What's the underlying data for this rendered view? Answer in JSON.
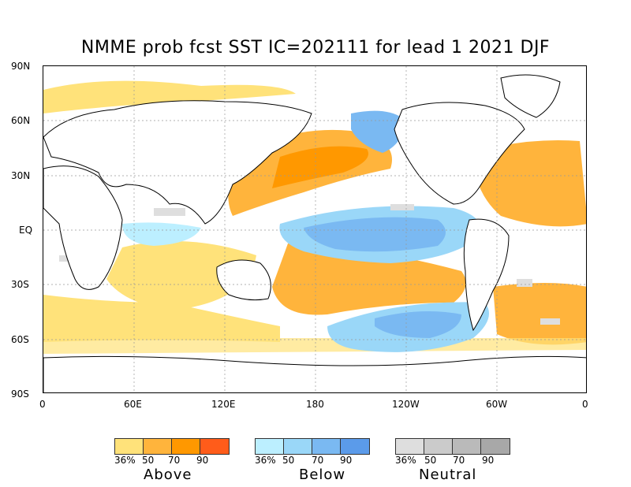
{
  "title": "NMME prob fcst SST IC=202111 for lead 1 2021 DJF",
  "lat_labels": [
    "90N",
    "60N",
    "30N",
    "EQ",
    "30S",
    "60S",
    "90S"
  ],
  "lon_labels": [
    "0",
    "60E",
    "120E",
    "180",
    "120W",
    "60W",
    "0"
  ],
  "legend": [
    {
      "name": "Above",
      "ticks": [
        "36%",
        "50",
        "70",
        "90"
      ],
      "colors": [
        "#ffe27a",
        "#ffb43c",
        "#ff9800",
        "#ff5c1a"
      ]
    },
    {
      "name": "Below",
      "ticks": [
        "36%",
        "50",
        "70",
        "90"
      ],
      "colors": [
        "#bcefff",
        "#9ad7f8",
        "#7ab9f2",
        "#5b9bea"
      ]
    },
    {
      "name": "Neutral",
      "ticks": [
        "36%",
        "50",
        "70",
        "90"
      ],
      "colors": [
        "#dedede",
        "#cbcbcb",
        "#bababa",
        "#a8a8a8"
      ]
    }
  ],
  "colors": {
    "ocean_background": "#ffffff",
    "land": "#ffffff",
    "coastline": "#000000",
    "grid": "#999999"
  }
}
